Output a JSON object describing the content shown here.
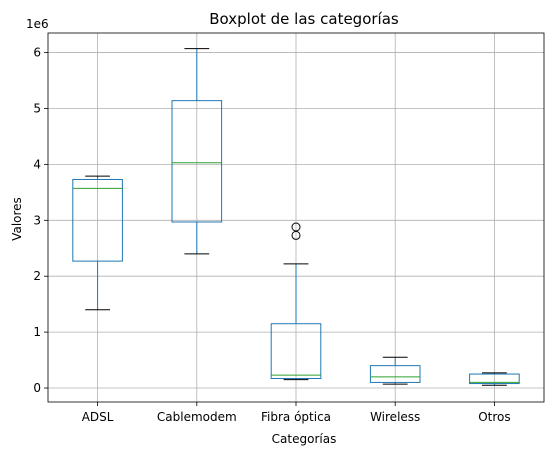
{
  "chart_data": {
    "type": "boxplot",
    "title": "Boxplot de las categorías",
    "xlabel": "Categorías",
    "ylabel": "Valores",
    "y_offset_label": "1e6",
    "ylim": [
      -250000,
      6350000
    ],
    "yticks": [
      0,
      1000000,
      2000000,
      3000000,
      4000000,
      5000000,
      6000000
    ],
    "ytick_labels": [
      "0",
      "1",
      "2",
      "3",
      "4",
      "5",
      "6"
    ],
    "grid": true,
    "colors": {
      "box": "#1f77b4",
      "median": "#2ca02c",
      "whisker_cap": "#000000",
      "grid": "#b0b0b0"
    },
    "categories": [
      "ADSL",
      "Cablemodem",
      "Fibra óptica",
      "Wireless",
      "Otros"
    ],
    "boxes": [
      {
        "category": "ADSL",
        "whisker_low": 1400000,
        "q1": 2270000,
        "median": 3570000,
        "q3": 3730000,
        "whisker_high": 3790000,
        "outliers": []
      },
      {
        "category": "Cablemodem",
        "whisker_low": 2400000,
        "q1": 2970000,
        "median": 4030000,
        "q3": 5140000,
        "whisker_high": 6070000,
        "outliers": []
      },
      {
        "category": "Fibra óptica",
        "whisker_low": 150000,
        "q1": 170000,
        "median": 230000,
        "q3": 1150000,
        "whisker_high": 2220000,
        "outliers": [
          2730000,
          2880000
        ]
      },
      {
        "category": "Wireless",
        "whisker_low": 70000,
        "q1": 100000,
        "median": 200000,
        "q3": 400000,
        "whisker_high": 550000,
        "outliers": []
      },
      {
        "category": "Otros",
        "whisker_low": 50000,
        "q1": 80000,
        "median": 100000,
        "q3": 250000,
        "whisker_high": 270000,
        "outliers": []
      }
    ]
  }
}
